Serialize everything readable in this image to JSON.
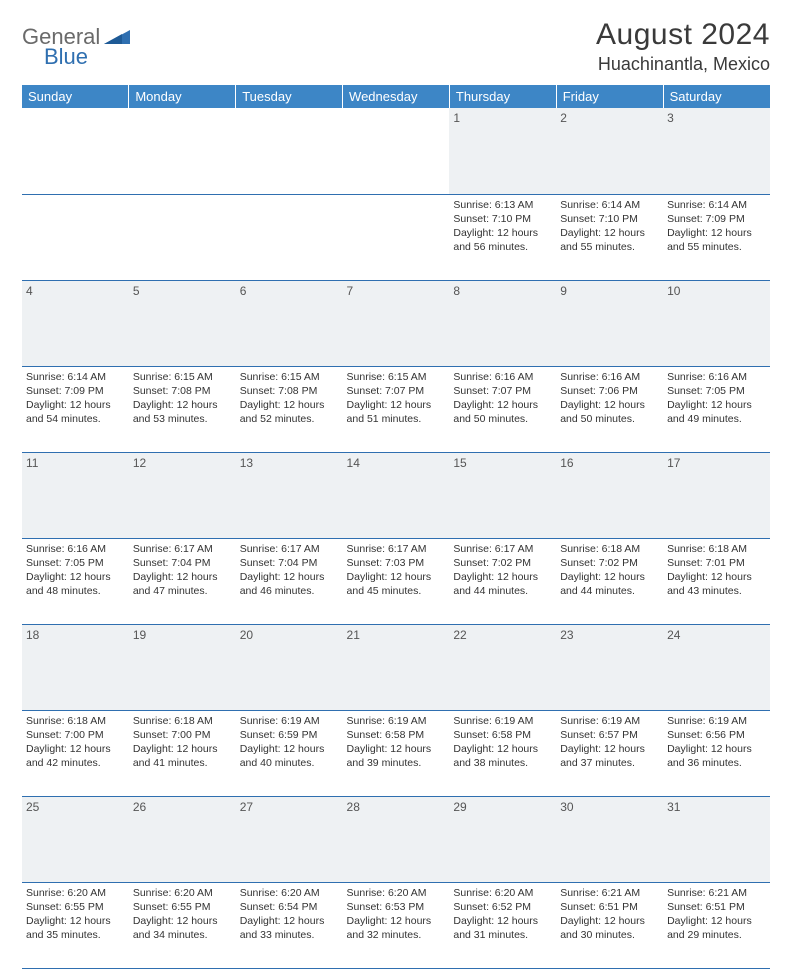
{
  "logo": {
    "part1": "General",
    "part2": "Blue"
  },
  "title": "August 2024",
  "location": "Huachinantla, Mexico",
  "colors": {
    "header_bg": "#3d86c6",
    "header_text": "#ffffff",
    "daynum_bg": "#eef1f3",
    "row_border": "#2f6fb0",
    "logo_gray": "#6a6a6a",
    "logo_blue": "#2f6fb0"
  },
  "days_of_week": [
    "Sunday",
    "Monday",
    "Tuesday",
    "Wednesday",
    "Thursday",
    "Friday",
    "Saturday"
  ],
  "weeks": [
    {
      "nums": [
        "",
        "",
        "",
        "",
        "1",
        "2",
        "3"
      ],
      "cells": [
        {
          "empty": true
        },
        {
          "empty": true
        },
        {
          "empty": true
        },
        {
          "empty": true
        },
        {
          "sunrise": "Sunrise: 6:13 AM",
          "sunset": "Sunset: 7:10 PM",
          "daylight": "Daylight: 12 hours and 56 minutes."
        },
        {
          "sunrise": "Sunrise: 6:14 AM",
          "sunset": "Sunset: 7:10 PM",
          "daylight": "Daylight: 12 hours and 55 minutes."
        },
        {
          "sunrise": "Sunrise: 6:14 AM",
          "sunset": "Sunset: 7:09 PM",
          "daylight": "Daylight: 12 hours and 55 minutes."
        }
      ]
    },
    {
      "nums": [
        "4",
        "5",
        "6",
        "7",
        "8",
        "9",
        "10"
      ],
      "cells": [
        {
          "sunrise": "Sunrise: 6:14 AM",
          "sunset": "Sunset: 7:09 PM",
          "daylight": "Daylight: 12 hours and 54 minutes."
        },
        {
          "sunrise": "Sunrise: 6:15 AM",
          "sunset": "Sunset: 7:08 PM",
          "daylight": "Daylight: 12 hours and 53 minutes."
        },
        {
          "sunrise": "Sunrise: 6:15 AM",
          "sunset": "Sunset: 7:08 PM",
          "daylight": "Daylight: 12 hours and 52 minutes."
        },
        {
          "sunrise": "Sunrise: 6:15 AM",
          "sunset": "Sunset: 7:07 PM",
          "daylight": "Daylight: 12 hours and 51 minutes."
        },
        {
          "sunrise": "Sunrise: 6:16 AM",
          "sunset": "Sunset: 7:07 PM",
          "daylight": "Daylight: 12 hours and 50 minutes."
        },
        {
          "sunrise": "Sunrise: 6:16 AM",
          "sunset": "Sunset: 7:06 PM",
          "daylight": "Daylight: 12 hours and 50 minutes."
        },
        {
          "sunrise": "Sunrise: 6:16 AM",
          "sunset": "Sunset: 7:05 PM",
          "daylight": "Daylight: 12 hours and 49 minutes."
        }
      ]
    },
    {
      "nums": [
        "11",
        "12",
        "13",
        "14",
        "15",
        "16",
        "17"
      ],
      "cells": [
        {
          "sunrise": "Sunrise: 6:16 AM",
          "sunset": "Sunset: 7:05 PM",
          "daylight": "Daylight: 12 hours and 48 minutes."
        },
        {
          "sunrise": "Sunrise: 6:17 AM",
          "sunset": "Sunset: 7:04 PM",
          "daylight": "Daylight: 12 hours and 47 minutes."
        },
        {
          "sunrise": "Sunrise: 6:17 AM",
          "sunset": "Sunset: 7:04 PM",
          "daylight": "Daylight: 12 hours and 46 minutes."
        },
        {
          "sunrise": "Sunrise: 6:17 AM",
          "sunset": "Sunset: 7:03 PM",
          "daylight": "Daylight: 12 hours and 45 minutes."
        },
        {
          "sunrise": "Sunrise: 6:17 AM",
          "sunset": "Sunset: 7:02 PM",
          "daylight": "Daylight: 12 hours and 44 minutes."
        },
        {
          "sunrise": "Sunrise: 6:18 AM",
          "sunset": "Sunset: 7:02 PM",
          "daylight": "Daylight: 12 hours and 44 minutes."
        },
        {
          "sunrise": "Sunrise: 6:18 AM",
          "sunset": "Sunset: 7:01 PM",
          "daylight": "Daylight: 12 hours and 43 minutes."
        }
      ]
    },
    {
      "nums": [
        "18",
        "19",
        "20",
        "21",
        "22",
        "23",
        "24"
      ],
      "cells": [
        {
          "sunrise": "Sunrise: 6:18 AM",
          "sunset": "Sunset: 7:00 PM",
          "daylight": "Daylight: 12 hours and 42 minutes."
        },
        {
          "sunrise": "Sunrise: 6:18 AM",
          "sunset": "Sunset: 7:00 PM",
          "daylight": "Daylight: 12 hours and 41 minutes."
        },
        {
          "sunrise": "Sunrise: 6:19 AM",
          "sunset": "Sunset: 6:59 PM",
          "daylight": "Daylight: 12 hours and 40 minutes."
        },
        {
          "sunrise": "Sunrise: 6:19 AM",
          "sunset": "Sunset: 6:58 PM",
          "daylight": "Daylight: 12 hours and 39 minutes."
        },
        {
          "sunrise": "Sunrise: 6:19 AM",
          "sunset": "Sunset: 6:58 PM",
          "daylight": "Daylight: 12 hours and 38 minutes."
        },
        {
          "sunrise": "Sunrise: 6:19 AM",
          "sunset": "Sunset: 6:57 PM",
          "daylight": "Daylight: 12 hours and 37 minutes."
        },
        {
          "sunrise": "Sunrise: 6:19 AM",
          "sunset": "Sunset: 6:56 PM",
          "daylight": "Daylight: 12 hours and 36 minutes."
        }
      ]
    },
    {
      "nums": [
        "25",
        "26",
        "27",
        "28",
        "29",
        "30",
        "31"
      ],
      "cells": [
        {
          "sunrise": "Sunrise: 6:20 AM",
          "sunset": "Sunset: 6:55 PM",
          "daylight": "Daylight: 12 hours and 35 minutes."
        },
        {
          "sunrise": "Sunrise: 6:20 AM",
          "sunset": "Sunset: 6:55 PM",
          "daylight": "Daylight: 12 hours and 34 minutes."
        },
        {
          "sunrise": "Sunrise: 6:20 AM",
          "sunset": "Sunset: 6:54 PM",
          "daylight": "Daylight: 12 hours and 33 minutes."
        },
        {
          "sunrise": "Sunrise: 6:20 AM",
          "sunset": "Sunset: 6:53 PM",
          "daylight": "Daylight: 12 hours and 32 minutes."
        },
        {
          "sunrise": "Sunrise: 6:20 AM",
          "sunset": "Sunset: 6:52 PM",
          "daylight": "Daylight: 12 hours and 31 minutes."
        },
        {
          "sunrise": "Sunrise: 6:21 AM",
          "sunset": "Sunset: 6:51 PM",
          "daylight": "Daylight: 12 hours and 30 minutes."
        },
        {
          "sunrise": "Sunrise: 6:21 AM",
          "sunset": "Sunset: 6:51 PM",
          "daylight": "Daylight: 12 hours and 29 minutes."
        }
      ]
    }
  ]
}
